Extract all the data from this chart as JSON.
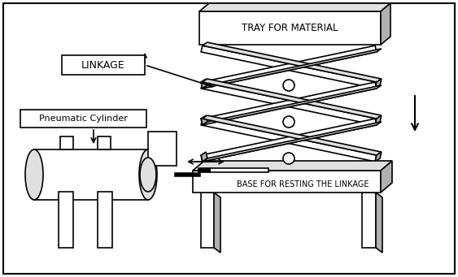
{
  "bg_color": "#ffffff",
  "border_color": "#000000",
  "line_color": "#000000",
  "fill_light": "#e0e0e0",
  "fill_dark": "#b0b0b0",
  "title_tray": "TRAY FOR MATERIAL",
  "label_linkage": "LINKAGE",
  "label_pneumatic": "Pneumatic Cylinder",
  "label_base": "BASE FOR RESTING THE LINKAGE",
  "figsize": [
    5.63,
    3.41
  ],
  "dpi": 100
}
